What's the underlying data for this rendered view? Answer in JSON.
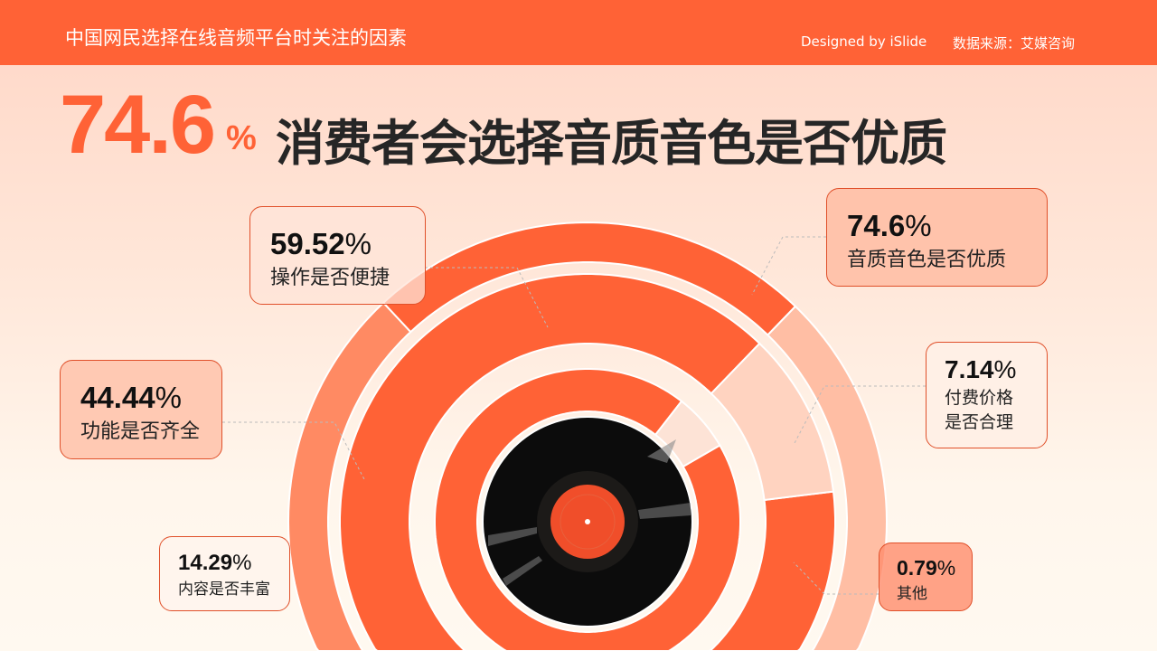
{
  "header": {
    "title": "中国网民选择在线音频平台时关注的因素",
    "designer": "Designed by iSlide",
    "source": "数据来源：艾媒咨询"
  },
  "headline": {
    "value": "74.6",
    "unit": "%",
    "text": "消费者会选择音质音色是否优质"
  },
  "colors": {
    "accent": "#ff6236",
    "light": "#ff8a63",
    "peach": "#ffbea4",
    "pale": "#ffd3c0",
    "record": "#0d0d0d",
    "label": "#f04e2a"
  },
  "chart_data": {
    "type": "pie",
    "style": "concentric rings around a vinyl record",
    "unit": "%",
    "labels": [
      {
        "value": "74.6",
        "unit": "%",
        "name": "音质音色是否优质"
      },
      {
        "value": "59.52",
        "unit": "%",
        "name": "操作是否便捷"
      },
      {
        "value": "44.44",
        "unit": "%",
        "name": "功能是否齐全"
      },
      {
        "value": "14.29",
        "unit": "%",
        "name": "内容是否丰富"
      },
      {
        "value": "7.14",
        "unit": "%",
        "name": "付费价格",
        "name2": "是否合理"
      },
      {
        "value": "0.79",
        "unit": "%",
        "name": "其他"
      }
    ],
    "categories": [
      "音质音色是否优质",
      "操作是否便捷",
      "功能是否齐全",
      "内容是否丰富",
      "付费价格是否合理",
      "其他"
    ],
    "values": [
      74.6,
      59.52,
      44.44,
      14.29,
      7.14,
      0.79
    ]
  }
}
